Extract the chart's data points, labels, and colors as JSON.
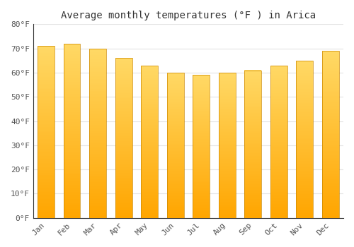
{
  "title": "Average monthly temperatures (°F ) in Arica",
  "months": [
    "Jan",
    "Feb",
    "Mar",
    "Apr",
    "May",
    "Jun",
    "Jul",
    "Aug",
    "Sep",
    "Oct",
    "Nov",
    "Dec"
  ],
  "values": [
    71,
    72,
    70,
    66,
    63,
    60,
    59,
    60,
    61,
    63,
    65,
    69
  ],
  "bar_color_bottom": "#FFA500",
  "bar_color_top": "#FFD966",
  "bar_edge_color": "#CC8800",
  "bar_edge_width": 0.5,
  "background_color": "#FFFFFF",
  "plot_bg_color": "#FFFFFF",
  "ylim": [
    0,
    80
  ],
  "ytick_step": 10,
  "grid_color": "#DDDDDD",
  "grid_alpha": 0.8,
  "title_fontsize": 10,
  "tick_fontsize": 8,
  "bar_width": 0.65
}
